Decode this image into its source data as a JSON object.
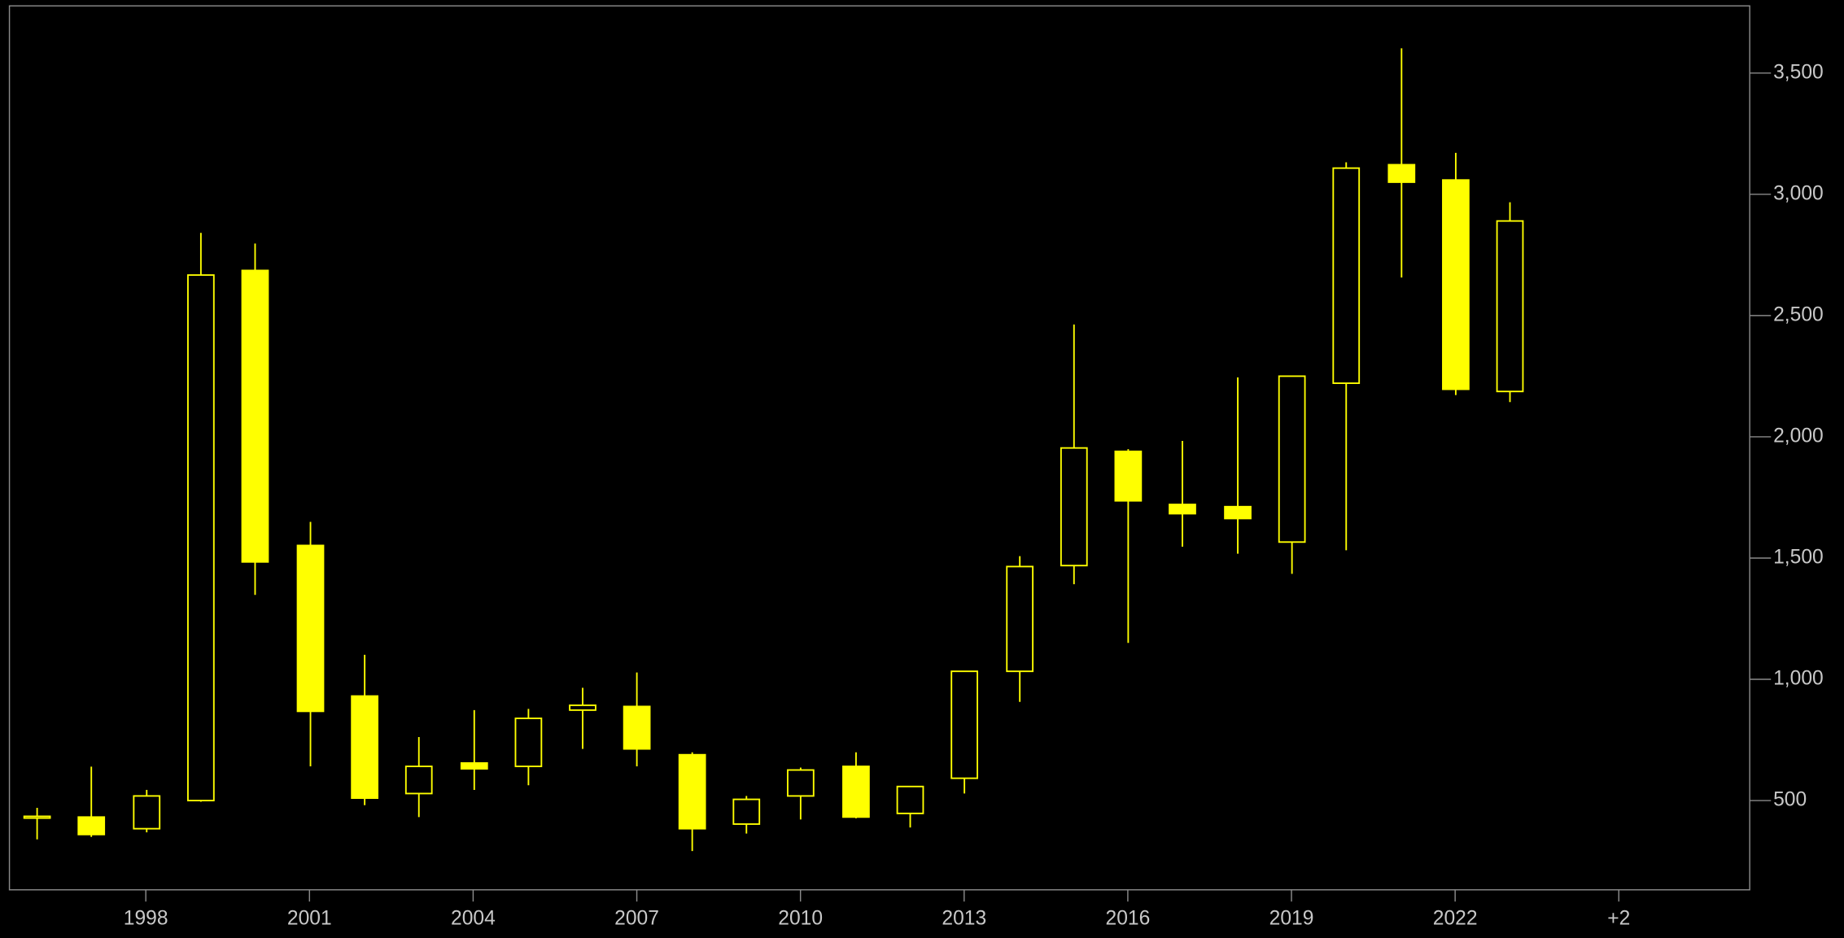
{
  "chart_data": {
    "type": "candlestick",
    "color": "#ffff00",
    "x": [
      1996,
      1997,
      1998,
      1999,
      2000,
      2001,
      2002,
      2003,
      2004,
      2005,
      2006,
      2007,
      2008,
      2009,
      2010,
      2011,
      2012,
      2013,
      2014,
      2015,
      2016,
      2017,
      2018,
      2019,
      2020,
      2021,
      2022,
      2023
    ],
    "open": [
      430,
      432,
      384,
      500,
      2686,
      1552,
      931,
      529,
      655,
      641,
      873,
      888,
      689,
      403,
      519,
      641,
      447,
      592,
      1033,
      1469,
      1940,
      1721,
      1712,
      1566,
      2221,
      3122,
      3059,
      2187
    ],
    "high": [
      470,
      640,
      544,
      2841,
      2797,
      1649,
      1101,
      762,
      873,
      878,
      965,
      1028,
      699,
      519,
      636,
      699,
      558,
      1033,
      1508,
      2463,
      1949,
      1983,
      2245,
      2250,
      3132,
      3602,
      3171,
      2967
    ],
    "low": [
      340,
      350,
      369,
      495,
      1348,
      641,
      481,
      432,
      544,
      563,
      713,
      641,
      292,
      364,
      422,
      427,
      389,
      529,
      907,
      1392,
      1150,
      1547,
      1518,
      1435,
      1532,
      2657,
      2172,
      2143
    ],
    "close": [
      435,
      360,
      519,
      2667,
      1484,
      868,
      510,
      641,
      631,
      839,
      893,
      713,
      384,
      505,
      626,
      432,
      558,
      1033,
      1465,
      1954,
      1736,
      1683,
      1663,
      2250,
      3108,
      3050,
      2196,
      2890
    ],
    "xlim": [
      1995.5,
      2027.4
    ],
    "xticks": [
      1998,
      2001,
      2004,
      2007,
      2010,
      2013,
      2016,
      2019,
      2022,
      {
        "value": 2025,
        "label": "+2"
      }
    ],
    "ylim": [
      132,
      3777
    ],
    "yticks": [
      500,
      {
        "value": 1000,
        "label": "1,000"
      },
      {
        "value": 1500,
        "label": "1,500"
      },
      {
        "value": 2000,
        "label": "2,000"
      },
      {
        "value": 2500,
        "label": "2,500"
      },
      {
        "value": 3000,
        "label": "3,000"
      },
      {
        "value": 3500,
        "label": "3,500"
      }
    ]
  }
}
